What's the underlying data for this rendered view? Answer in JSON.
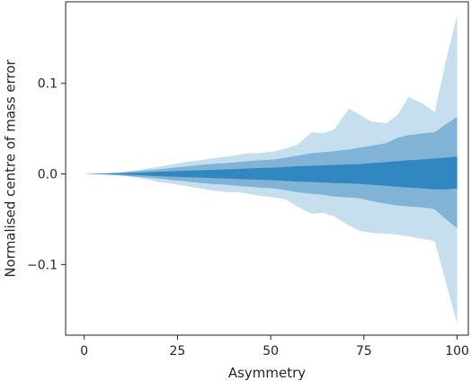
{
  "chart_data": {
    "type": "area",
    "title": "",
    "xlabel": "Asymmetry",
    "ylabel": "Normalised centre of mass error",
    "xlim": [
      -5,
      103
    ],
    "ylim": [
      -0.178,
      0.19
    ],
    "xticks": [
      0,
      25,
      50,
      75,
      100
    ],
    "xtick_labels": [
      "0",
      "25",
      "50",
      "75",
      "100"
    ],
    "yticks": [
      -0.1,
      0.0,
      0.1
    ],
    "ytick_labels": [
      "−0.1",
      "0.0",
      "0.1"
    ],
    "grid": false,
    "legend": "none",
    "x": [
      0,
      3,
      6,
      10,
      14,
      17,
      20,
      24,
      27,
      31,
      34,
      38,
      41,
      44,
      47,
      51,
      54,
      57,
      61,
      64,
      67,
      71,
      74,
      77,
      81,
      84,
      87,
      91,
      94,
      97,
      100
    ],
    "bands": [
      {
        "color": "#c6dfee",
        "upper": [
          0.0,
          0.0005,
          0.001,
          0.002,
          0.004,
          0.006,
          0.008,
          0.011,
          0.013,
          0.015,
          0.017,
          0.019,
          0.021,
          0.023,
          0.023,
          0.025,
          0.028,
          0.032,
          0.046,
          0.045,
          0.049,
          0.072,
          0.065,
          0.058,
          0.056,
          0.065,
          0.085,
          0.077,
          0.068,
          0.125,
          0.175
        ],
        "lower": [
          0.0,
          -0.0005,
          -0.001,
          -0.002,
          -0.004,
          -0.006,
          -0.009,
          -0.011,
          -0.013,
          -0.016,
          -0.018,
          -0.02,
          -0.02,
          -0.022,
          -0.024,
          -0.026,
          -0.028,
          -0.036,
          -0.044,
          -0.043,
          -0.047,
          -0.057,
          -0.063,
          -0.065,
          -0.066,
          -0.067,
          -0.069,
          -0.072,
          -0.074,
          -0.12,
          -0.165
        ]
      },
      {
        "color": "#80b3d6",
        "upper": [
          0.0,
          0.0003,
          0.0006,
          0.0015,
          0.003,
          0.004,
          0.005,
          0.007,
          0.008,
          0.01,
          0.011,
          0.012,
          0.013,
          0.014,
          0.015,
          0.016,
          0.018,
          0.02,
          0.023,
          0.024,
          0.025,
          0.027,
          0.029,
          0.031,
          0.034,
          0.04,
          0.043,
          0.045,
          0.046,
          0.055,
          0.063
        ],
        "lower": [
          0.0,
          -0.0003,
          -0.0006,
          -0.0015,
          -0.003,
          -0.004,
          -0.005,
          -0.007,
          -0.008,
          -0.01,
          -0.011,
          -0.012,
          -0.013,
          -0.014,
          -0.015,
          -0.016,
          -0.018,
          -0.02,
          -0.022,
          -0.023,
          -0.025,
          -0.026,
          -0.027,
          -0.03,
          -0.033,
          -0.035,
          -0.036,
          -0.037,
          -0.039,
          -0.05,
          -0.06
        ]
      },
      {
        "color": "#3187c0",
        "upper": [
          0.0,
          0.0001,
          0.0003,
          0.0007,
          0.0012,
          0.0018,
          0.0025,
          0.003,
          0.0035,
          0.004,
          0.0045,
          0.005,
          0.0055,
          0.006,
          0.0065,
          0.007,
          0.0078,
          0.0085,
          0.009,
          0.0095,
          0.01,
          0.0105,
          0.011,
          0.012,
          0.013,
          0.014,
          0.015,
          0.016,
          0.017,
          0.018,
          0.019
        ],
        "lower": [
          0.0,
          -0.0001,
          -0.0003,
          -0.0007,
          -0.0012,
          -0.0018,
          -0.0025,
          -0.003,
          -0.0035,
          -0.004,
          -0.0045,
          -0.005,
          -0.0055,
          -0.006,
          -0.0065,
          -0.007,
          -0.0078,
          -0.0085,
          -0.009,
          -0.0095,
          -0.01,
          -0.0105,
          -0.011,
          -0.012,
          -0.013,
          -0.014,
          -0.015,
          -0.016,
          -0.017,
          -0.017,
          -0.016
        ]
      }
    ]
  }
}
